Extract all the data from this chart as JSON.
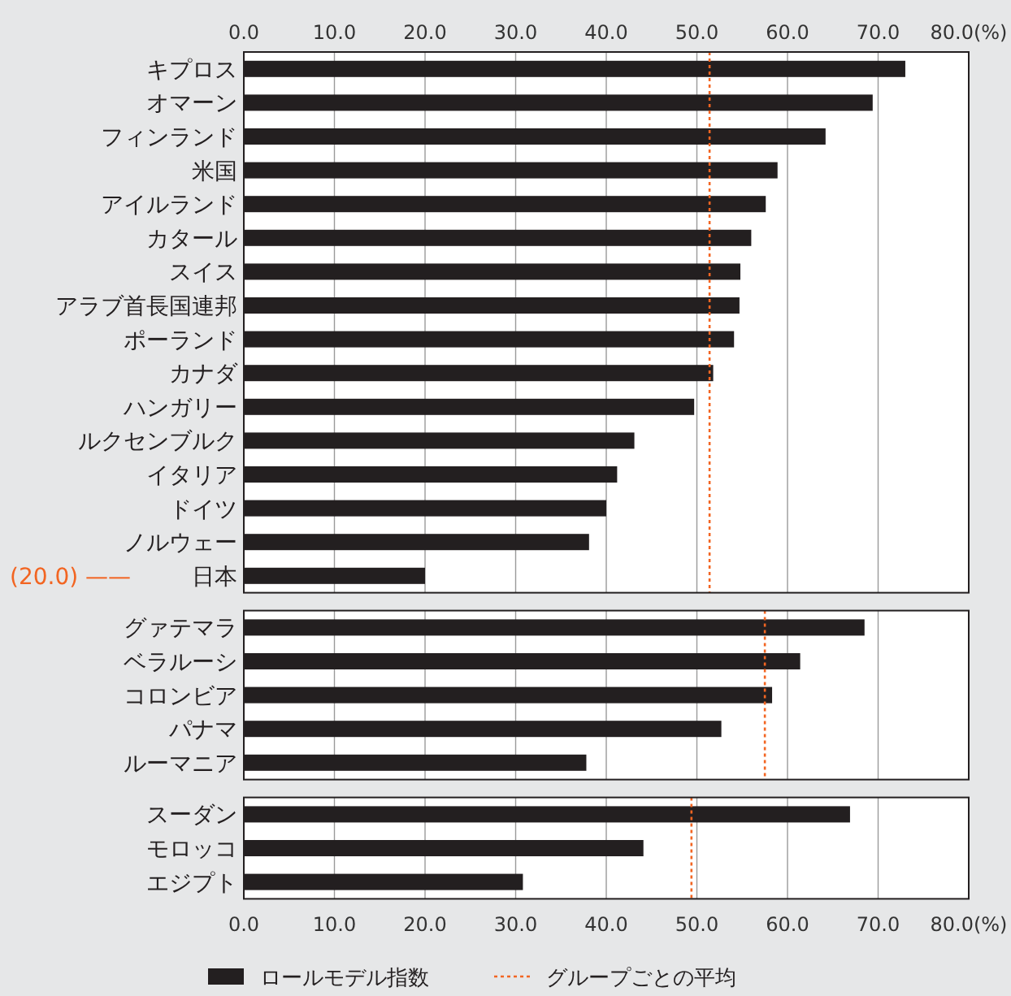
{
  "chart_data": [
    {
      "type": "bar",
      "orientation": "horizontal",
      "categories": [
        "キプロス",
        "オマーン",
        "フィンランド",
        "米国",
        "アイルランド",
        "カタール",
        "スイス",
        "アラブ首長国連邦",
        "ポーランド",
        "カナダ",
        "ハンガリー",
        "ルクセンブルク",
        "イタリア",
        "ドイツ",
        "ノルウェー",
        "日本"
      ],
      "series": [
        {
          "color": "#231f20",
          "values": [
            73.0,
            69.4,
            64.2,
            58.9,
            57.6,
            56.0,
            54.8,
            54.7,
            54.1,
            51.8,
            49.7,
            43.1,
            41.2,
            40.0,
            38.1,
            20.0
          ]
        }
      ],
      "annotations": [
        "(20.0) ——"
      ],
      "xlim": [
        0,
        80
      ],
      "xticks": [
        {
          "value": 0,
          "label": "0.0"
        },
        {
          "value": 10,
          "label": "10.0"
        },
        {
          "value": 20,
          "label": "20.0"
        },
        {
          "value": 30,
          "label": "30.0"
        },
        {
          "value": 40,
          "label": "40.0"
        },
        {
          "value": 50,
          "label": "50.0"
        },
        {
          "value": 60,
          "label": "60.0"
        },
        {
          "value": 70,
          "label": "70.0"
        },
        {
          "value": 80,
          "label": "80.0(%)"
        }
      ],
      "grid": "x",
      "ref_lines": [
        {
          "axis": "x",
          "value": 51.4,
          "color": "#f26522",
          "line_style": "dotted"
        }
      ]
    },
    {
      "type": "bar",
      "orientation": "horizontal",
      "categories": [
        "グァテマラ",
        "ベラルーシ",
        "コロンビア",
        "パナマ",
        "ルーマニア"
      ],
      "series": [
        {
          "color": "#231f20",
          "values": [
            68.5,
            61.4,
            58.3,
            52.7,
            37.8
          ]
        }
      ],
      "xlim": [
        0,
        80
      ],
      "xticks": [
        0,
        10,
        20,
        30,
        40,
        50,
        60,
        70,
        80
      ],
      "tick_labels": "y",
      "grid": "x",
      "ref_lines": [
        {
          "axis": "x",
          "value": 57.5,
          "color": "#f26522",
          "line_style": "dotted"
        }
      ]
    },
    {
      "type": "bar",
      "orientation": "horizontal",
      "categories": [
        "スーダン",
        "モロッコ",
        "エジプト"
      ],
      "series": [
        {
          "name": "ロールモデル指数",
          "color": "#231f20",
          "values": [
            66.9,
            44.1,
            30.8
          ]
        }
      ],
      "xlim": [
        0,
        80
      ],
      "xticks": [
        {
          "value": 0,
          "label": "0.0"
        },
        {
          "value": 10,
          "label": "10.0"
        },
        {
          "value": 20,
          "label": "20.0"
        },
        {
          "value": 30,
          "label": "30.0"
        },
        {
          "value": 40,
          "label": "40.0"
        },
        {
          "value": 50,
          "label": "50.0"
        },
        {
          "value": 60,
          "label": "60.0"
        },
        {
          "value": 70,
          "label": "70.0"
        },
        {
          "value": 80,
          "label": "80.0(%)"
        }
      ],
      "grid": "x",
      "legend": "bottom",
      "ref_lines": [
        {
          "axis": "x",
          "value": 49.4,
          "label": "グループごとの平均",
          "color": "#f26522",
          "line_style": "dotted"
        }
      ]
    }
  ]
}
